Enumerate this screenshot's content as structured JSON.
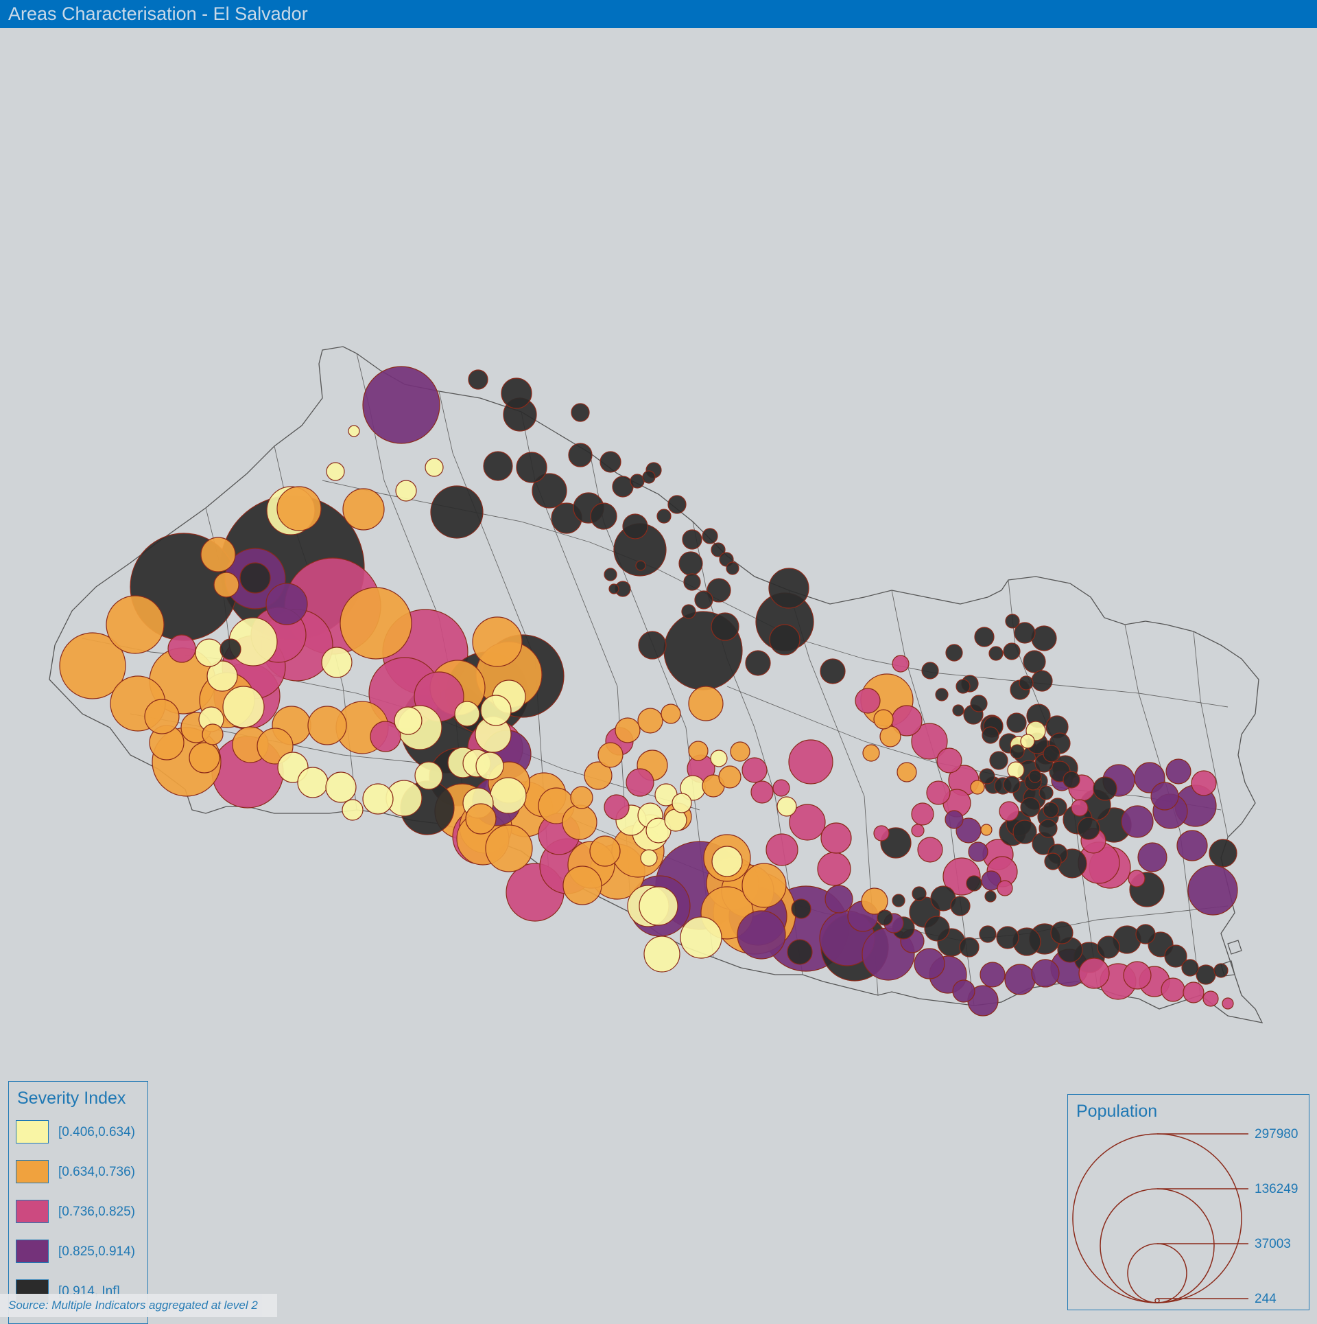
{
  "title": "Areas Characterisation - El Salvador",
  "severity_legend": {
    "title": "Severity Index",
    "items": [
      {
        "label": "[0.406,0.634)",
        "color": "#f9f5a5"
      },
      {
        "label": "[0.634,0.736)",
        "color": "#f0a23e"
      },
      {
        "label": "[0.736,0.825)",
        "color": "#cc4a80"
      },
      {
        "label": "[0.825,0.914)",
        "color": "#74327a"
      },
      {
        "label": "[0.914, Inf]",
        "color": "#2b2b2b"
      }
    ]
  },
  "population_legend": {
    "title": "Population",
    "values": [
      "297980",
      "136249",
      "37003",
      "244"
    ],
    "circle_stroke": "#8b2a1a"
  },
  "source": "Source: Multiple Indicators aggregated at level 2",
  "colors": {
    "background": "#d0d4d7",
    "header": "#0070bf",
    "boundary": "#555555",
    "bubble_stroke": "#8b2a1a",
    "legend_text": "#1f78b4"
  }
}
